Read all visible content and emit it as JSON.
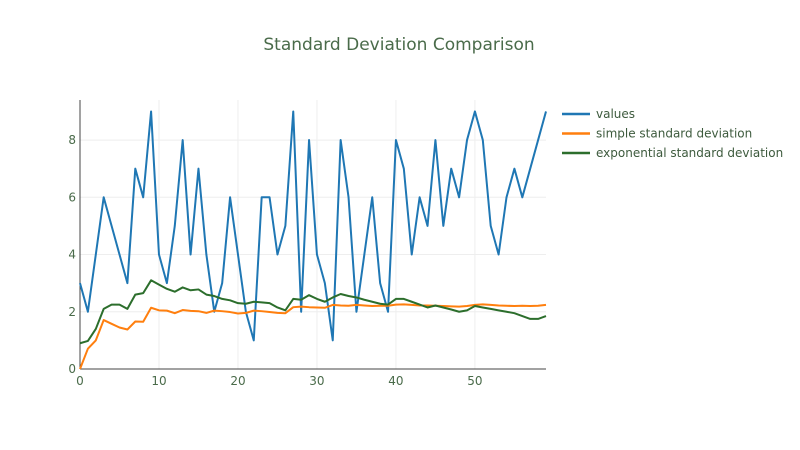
{
  "chart_data": {
    "type": "line",
    "title": "Standard Deviation Comparison",
    "xlabel": "",
    "ylabel": "",
    "xlim": [
      0,
      59
    ],
    "ylim": [
      0,
      9.4
    ],
    "xticks": [
      0,
      10,
      20,
      30,
      40,
      50
    ],
    "yticks": [
      0,
      2,
      4,
      6,
      8
    ],
    "grid": true,
    "legend_position": "top-right",
    "x": [
      0,
      1,
      2,
      3,
      4,
      5,
      6,
      7,
      8,
      9,
      10,
      11,
      12,
      13,
      14,
      15,
      16,
      17,
      18,
      19,
      20,
      21,
      22,
      23,
      24,
      25,
      26,
      27,
      28,
      29,
      30,
      31,
      32,
      33,
      34,
      35,
      36,
      37,
      38,
      39,
      40,
      41,
      42,
      43,
      44,
      45,
      46,
      47,
      48,
      49,
      50,
      51,
      52,
      53,
      54,
      55,
      56,
      57,
      58,
      59
    ],
    "series": [
      {
        "name": "values",
        "color": "#1f77b4",
        "values": [
          3,
          2,
          4,
          6,
          5,
          4,
          3,
          7,
          6,
          9,
          4,
          3,
          5,
          8,
          4,
          7,
          4,
          2,
          3,
          6,
          4,
          2,
          1,
          6,
          6,
          4,
          5,
          9,
          2,
          8,
          4,
          3,
          1,
          8,
          6,
          2,
          4,
          6,
          3,
          2,
          8,
          7,
          4,
          6,
          5,
          8,
          5,
          7,
          6,
          8,
          9,
          8,
          5,
          4,
          6,
          7,
          6,
          7,
          8,
          9
        ]
      },
      {
        "name": "simple standard deviation",
        "color": "#ff7f0e",
        "values": [
          0,
          0.71,
          1.0,
          1.71,
          1.58,
          1.45,
          1.38,
          1.66,
          1.65,
          2.14,
          2.05,
          2.04,
          1.95,
          2.06,
          2.03,
          2.02,
          1.96,
          2.04,
          2.02,
          1.99,
          1.94,
          1.96,
          2.04,
          2.02,
          1.99,
          1.96,
          1.95,
          2.16,
          2.18,
          2.16,
          2.15,
          2.14,
          2.24,
          2.22,
          2.21,
          2.24,
          2.22,
          2.2,
          2.21,
          2.21,
          2.25,
          2.26,
          2.24,
          2.22,
          2.22,
          2.21,
          2.2,
          2.19,
          2.18,
          2.2,
          2.24,
          2.26,
          2.24,
          2.22,
          2.21,
          2.2,
          2.21,
          2.2,
          2.21,
          2.24
        ]
      },
      {
        "name": "exponential standard deviation",
        "color": "#2c6e2c",
        "values": [
          0.9,
          0.98,
          1.4,
          2.1,
          2.25,
          2.25,
          2.1,
          2.6,
          2.65,
          3.1,
          2.95,
          2.8,
          2.7,
          2.85,
          2.75,
          2.78,
          2.6,
          2.55,
          2.45,
          2.4,
          2.3,
          2.28,
          2.35,
          2.33,
          2.3,
          2.15,
          2.05,
          2.45,
          2.42,
          2.58,
          2.45,
          2.35,
          2.5,
          2.62,
          2.55,
          2.5,
          2.42,
          2.35,
          2.28,
          2.25,
          2.45,
          2.45,
          2.35,
          2.25,
          2.15,
          2.22,
          2.15,
          2.08,
          2.0,
          2.05,
          2.2,
          2.15,
          2.1,
          2.05,
          2.0,
          1.95,
          1.85,
          1.75,
          1.75,
          1.85
        ]
      }
    ]
  }
}
